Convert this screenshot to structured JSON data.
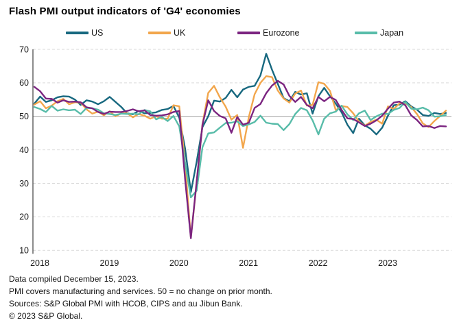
{
  "title": "Flash PMI output indicators of 'G4' economies",
  "footnotes": {
    "line1": "Data compiled December 15, 2023.",
    "line2": "PMI covers manufacturing and services. 50 = no change on prior month.",
    "line3": "Sources: S&P Global PMI with HCOB, CIPS and au Jibun Bank.",
    "line4": "© 2023 S&P Global."
  },
  "chart_data": {
    "type": "line",
    "title": "Flash PMI output indicators of 'G4' economies",
    "x_unit": "monthly",
    "x_range": [
      "Jan 2018",
      "Dec 2023"
    ],
    "x_tick_labels": [
      "2018",
      "2019",
      "2020",
      "2021",
      "2022",
      "2023"
    ],
    "y_ticks": [
      10,
      20,
      30,
      40,
      50,
      60,
      70
    ],
    "ylim": [
      10,
      70
    ],
    "reference_line": 50,
    "grid": "horizontal dashed, solid gray at 50",
    "legend_position": "top",
    "colors": {
      "grid": "#d9d9d9",
      "reference": "#a8a8a8",
      "axis": "#404040",
      "tick_text": "#1a1a1a"
    },
    "series": [
      {
        "name": "US",
        "color": "#17687f",
        "values": [
          53.8,
          55.9,
          54.3,
          54.8,
          55.7,
          56.0,
          55.9,
          55.0,
          53.4,
          54.8,
          54.4,
          53.6,
          54.5,
          55.8,
          54.3,
          52.8,
          50.9,
          50.6,
          51.6,
          50.9,
          51.0,
          51.2,
          51.9,
          52.2,
          53.1,
          49.6,
          40.5,
          27.4,
          36.4,
          46.8,
          50.0,
          54.7,
          54.4,
          55.5,
          57.9,
          55.7,
          58.0,
          58.8,
          59.1,
          62.2,
          68.7,
          63.9,
          59.7,
          55.4,
          54.5,
          57.3,
          56.5,
          56.9,
          50.8,
          56.0,
          58.5,
          56.0,
          53.8,
          51.2,
          47.5,
          45.0,
          49.3,
          47.3,
          46.3,
          44.6,
          46.6,
          50.2,
          53.3,
          53.5,
          54.5,
          53.0,
          52.0,
          50.4,
          50.1,
          51.0,
          50.7,
          51.0
        ]
      },
      {
        "name": "UK",
        "color": "#f2a64c",
        "values": [
          53.5,
          54.5,
          52.4,
          53.2,
          54.5,
          55.2,
          53.6,
          54.2,
          54.1,
          52.1,
          50.8,
          51.4,
          50.3,
          51.5,
          50.0,
          50.9,
          50.9,
          49.7,
          50.7,
          50.2,
          49.3,
          50.0,
          49.3,
          49.3,
          53.3,
          53.0,
          36.0,
          13.8,
          30.0,
          47.7,
          57.0,
          59.1,
          55.7,
          52.9,
          49.0,
          50.4,
          40.6,
          49.8,
          56.6,
          60.0,
          62.0,
          61.7,
          57.7,
          55.3,
          54.1,
          56.8,
          57.7,
          53.2,
          53.4,
          60.2,
          59.7,
          57.6,
          51.8,
          53.1,
          52.8,
          50.9,
          48.4,
          47.2,
          48.3,
          49.0,
          47.8,
          53.0,
          52.2,
          53.9,
          53.9,
          52.8,
          50.7,
          47.9,
          46.8,
          48.6,
          50.1,
          51.7
        ]
      },
      {
        "name": "Eurozone",
        "color": "#7b2480",
        "values": [
          58.8,
          57.5,
          55.3,
          55.2,
          54.1,
          54.8,
          54.3,
          54.4,
          54.2,
          52.7,
          52.4,
          51.3,
          50.7,
          51.4,
          51.3,
          51.3,
          51.6,
          52.1,
          51.5,
          51.8,
          50.4,
          50.2,
          50.3,
          50.6,
          51.3,
          51.6,
          31.4,
          13.6,
          30.5,
          47.5,
          54.8,
          51.6,
          50.1,
          49.4,
          45.1,
          49.8,
          47.5,
          48.1,
          52.5,
          53.7,
          56.9,
          59.2,
          60.6,
          59.5,
          56.1,
          54.3,
          55.8,
          53.4,
          52.4,
          55.8,
          54.5,
          55.8,
          54.9,
          51.9,
          49.4,
          49.2,
          48.2,
          47.1,
          47.8,
          48.8,
          50.2,
          52.3,
          54.1,
          54.4,
          53.3,
          50.3,
          48.9,
          47.0,
          47.1,
          46.5,
          47.1,
          47.0
        ]
      },
      {
        "name": "Japan",
        "color": "#58bca9",
        "values": [
          52.8,
          52.2,
          51.3,
          53.1,
          51.7,
          52.1,
          51.8,
          52.0,
          50.7,
          52.5,
          52.4,
          52.0,
          50.9,
          50.7,
          50.4,
          50.8,
          50.7,
          50.8,
          50.6,
          51.9,
          51.5,
          49.1,
          49.8,
          48.6,
          50.1,
          47.0,
          36.2,
          25.8,
          27.8,
          40.8,
          44.9,
          45.2,
          46.6,
          48.0,
          48.1,
          48.5,
          47.1,
          47.6,
          48.3,
          50.2,
          48.1,
          47.8,
          47.7,
          45.9,
          47.7,
          50.7,
          52.5,
          51.8,
          48.8,
          44.6,
          49.3,
          50.9,
          51.4,
          53.2,
          50.6,
          48.9,
          50.9,
          51.7,
          48.9,
          50.0,
          50.8,
          50.7,
          51.9,
          52.5,
          54.3,
          52.3,
          52.1,
          52.6,
          51.8,
          49.9,
          50.0,
          50.4
        ]
      }
    ]
  }
}
